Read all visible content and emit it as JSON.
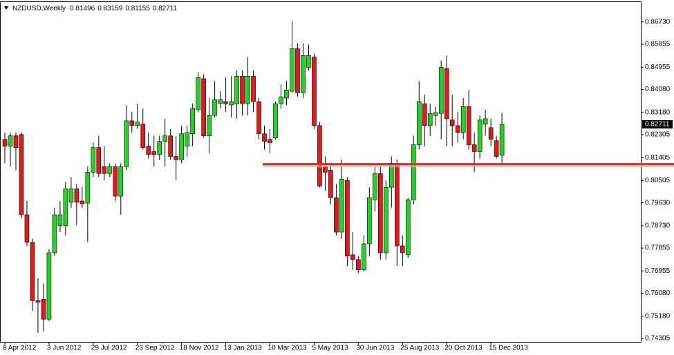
{
  "chart_data": {
    "type": "candlestick",
    "title": "NZDUSD,Weekly",
    "categories": [
      "8 Apr 2012",
      null,
      null,
      null,
      null,
      null,
      null,
      null,
      "3 Jun 2012",
      null,
      null,
      null,
      null,
      null,
      null,
      null,
      "29 Jul 2012",
      null,
      null,
      null,
      null,
      null,
      null,
      null,
      "23 Sep 2012",
      null,
      null,
      null,
      null,
      null,
      null,
      null,
      "18 Nov 2012",
      null,
      null,
      null,
      null,
      null,
      null,
      null,
      "13 Jan 2013",
      null,
      null,
      null,
      null,
      null,
      null,
      null,
      "10 Mar 2013",
      null,
      null,
      null,
      null,
      null,
      null,
      null,
      "5 May 2013",
      null,
      null,
      null,
      null,
      null,
      null,
      null,
      "30 Jun 2013",
      null,
      null,
      null,
      null,
      null,
      null,
      null,
      "25 Aug 2013",
      null,
      null,
      null,
      null,
      null,
      null,
      null,
      "20 Oct 2013",
      null,
      null,
      null,
      null,
      null,
      null,
      null,
      "15 Dec 2013",
      null,
      null
    ],
    "open": [
      0.8212,
      0.8185,
      0.8226,
      0.8231,
      0.7916,
      0.7808,
      0.7579,
      0.7584,
      0.7506,
      0.7767,
      0.7873,
      0.7873,
      0.7965,
      0.8018,
      0.797,
      0.7962,
      0.8083,
      0.818,
      0.8105,
      0.8078,
      0.8105,
      0.7989,
      0.8105,
      0.8285,
      0.8266,
      0.8272,
      0.8185,
      0.8164,
      0.8153,
      0.8204,
      0.8226,
      0.8145,
      0.8132,
      0.8185,
      0.8234,
      0.8328,
      0.845,
      0.8226,
      0.8306,
      0.8353,
      0.836,
      0.8347,
      0.8352,
      0.846,
      0.8352,
      0.846,
      0.836,
      0.8234,
      0.8212,
      0.8218,
      0.8352,
      0.8374,
      0.8401,
      0.8568,
      0.8395,
      0.8495,
      0.8535,
      0.8266,
      0.8105,
      0.8091,
      0.7983,
      0.7848,
      0.8051,
      0.7759,
      0.774,
      0.77,
      0.7802,
      0.7975,
      0.8078,
      0.7767,
      0.8024,
      0.8118,
      0.7794,
      0.7759,
      0.7975,
      0.8191,
      0.8352,
      0.8266,
      0.8306,
      0.8314,
      0.849,
      0.8288,
      0.8266,
      0.8239,
      0.8341,
      0.8191,
      0.8164,
      0.8272,
      0.8258,
      0.8207,
      0.81496
    ],
    "high": [
      0.8239,
      0.8239,
      0.8239,
      0.8239,
      0.797,
      0.7822,
      0.7667,
      0.7646,
      0.7781,
      0.7943,
      0.797,
      0.8045,
      0.8064,
      0.8037,
      0.8024,
      0.8105,
      0.8199,
      0.8226,
      0.8185,
      0.8118,
      0.8118,
      0.8118,
      0.8347,
      0.832,
      0.8352,
      0.8333,
      0.8239,
      0.8226,
      0.8226,
      0.8293,
      0.8253,
      0.8226,
      0.8266,
      0.8266,
      0.8352,
      0.8476,
      0.8468,
      0.8374,
      0.8441,
      0.8401,
      0.8455,
      0.846,
      0.8482,
      0.8482,
      0.8535,
      0.8482,
      0.8374,
      0.8266,
      0.8253,
      0.836,
      0.8428,
      0.8441,
      0.8676,
      0.8589,
      0.8589,
      0.8584,
      0.8549,
      0.828,
      0.8145,
      0.8118,
      0.8037,
      0.8132,
      0.8064,
      0.7848,
      0.7754,
      0.7835,
      0.8024,
      0.8105,
      0.8105,
      0.8051,
      0.8145,
      0.8132,
      0.7835,
      0.7983,
      0.8226,
      0.8441,
      0.8387,
      0.8352,
      0.8341,
      0.8522,
      0.8541,
      0.8387,
      0.832,
      0.8374,
      0.8406,
      0.8239,
      0.8306,
      0.8328,
      0.8293,
      0.8226,
      0.83159
    ],
    "low": [
      0.8118,
      0.8105,
      0.8091,
      0.7902,
      0.7794,
      0.7538,
      0.7452,
      0.7457,
      0.7498,
      0.7754,
      0.7848,
      0.7835,
      0.7943,
      0.7876,
      0.7943,
      0.7808,
      0.8064,
      0.8064,
      0.8051,
      0.8064,
      0.797,
      0.7916,
      0.8091,
      0.8239,
      0.8253,
      0.8172,
      0.8137,
      0.8105,
      0.8132,
      0.8105,
      0.8132,
      0.8051,
      0.8118,
      0.8145,
      0.8185,
      0.8317,
      0.8218,
      0.8158,
      0.8298,
      0.8334,
      0.832,
      0.8298,
      0.8293,
      0.8306,
      0.8306,
      0.832,
      0.8212,
      0.8172,
      0.8158,
      0.8212,
      0.8333,
      0.8347,
      0.8395,
      0.8379,
      0.8374,
      0.8482,
      0.8253,
      0.8024,
      0.801,
      0.7956,
      0.7835,
      0.7821,
      0.7714,
      0.77,
      0.7687,
      0.7695,
      0.7754,
      0.7929,
      0.774,
      0.774,
      0.7943,
      0.7714,
      0.7714,
      0.7748,
      0.7956,
      0.8172,
      0.8185,
      0.8226,
      0.8266,
      0.8212,
      0.8185,
      0.8185,
      0.8199,
      0.8212,
      0.8172,
      0.8083,
      0.8137,
      0.8226,
      0.8185,
      0.8137,
      0.81155
    ],
    "close": [
      0.8185,
      0.8226,
      0.818,
      0.7916,
      0.7808,
      0.7579,
      0.7573,
      0.7506,
      0.7767,
      0.7916,
      0.7916,
      0.8018,
      0.8018,
      0.7965,
      0.7959,
      0.8083,
      0.818,
      0.8078,
      0.8078,
      0.8105,
      0.7989,
      0.8105,
      0.8285,
      0.8266,
      0.828,
      0.818,
      0.8153,
      0.8153,
      0.8204,
      0.8226,
      0.8145,
      0.8132,
      0.8234,
      0.8239,
      0.8334,
      0.8455,
      0.8226,
      0.8306,
      0.8368,
      0.8368,
      0.8352,
      0.836,
      0.846,
      0.8352,
      0.846,
      0.836,
      0.8234,
      0.8204,
      0.8199,
      0.8352,
      0.8379,
      0.8406,
      0.8568,
      0.8395,
      0.8541,
      0.8541,
      0.8266,
      0.8029,
      0.8083,
      0.7983,
      0.7848,
      0.8056,
      0.7754,
      0.774,
      0.77,
      0.7802,
      0.7983,
      0.8078,
      0.7767,
      0.8024,
      0.8118,
      0.7794,
      0.7767,
      0.7975,
      0.8191,
      0.836,
      0.8266,
      0.8314,
      0.8317,
      0.8495,
      0.8293,
      0.8266,
      0.8239,
      0.8341,
      0.8191,
      0.8164,
      0.8288,
      0.8293,
      0.8212,
      0.8145,
      0.82711
    ],
    "up_color": "#2ecc2e",
    "down_color": "#d42020",
    "ylim": [
      0.7417,
      0.8751
    ],
    "yticks": [
      {
        "value": 0.8673,
        "label": "0.86730"
      },
      {
        "value": 0.85855,
        "label": "0.85855"
      },
      {
        "value": 0.84955,
        "label": "0.84955"
      },
      {
        "value": 0.8408,
        "label": "0.84080"
      },
      {
        "value": 0.8318,
        "label": "0.83180"
      },
      {
        "value": 0.82305,
        "label": "0.82305"
      },
      {
        "value": 0.81405,
        "label": "0.81405"
      },
      {
        "value": 0.80505,
        "label": "0.80505"
      },
      {
        "value": 0.7963,
        "label": "0.79630"
      },
      {
        "value": 0.7873,
        "label": "0.78730"
      },
      {
        "value": 0.77855,
        "label": "0.77855"
      },
      {
        "value": 0.76955,
        "label": "0.76955"
      },
      {
        "value": 0.7608,
        "label": "0.76080"
      },
      {
        "value": 0.7518,
        "label": "0.75180"
      },
      {
        "value": 0.74305,
        "label": "0.74305"
      }
    ],
    "hline": {
      "value": 0.8115,
      "color": "#c0392b"
    }
  }
}
